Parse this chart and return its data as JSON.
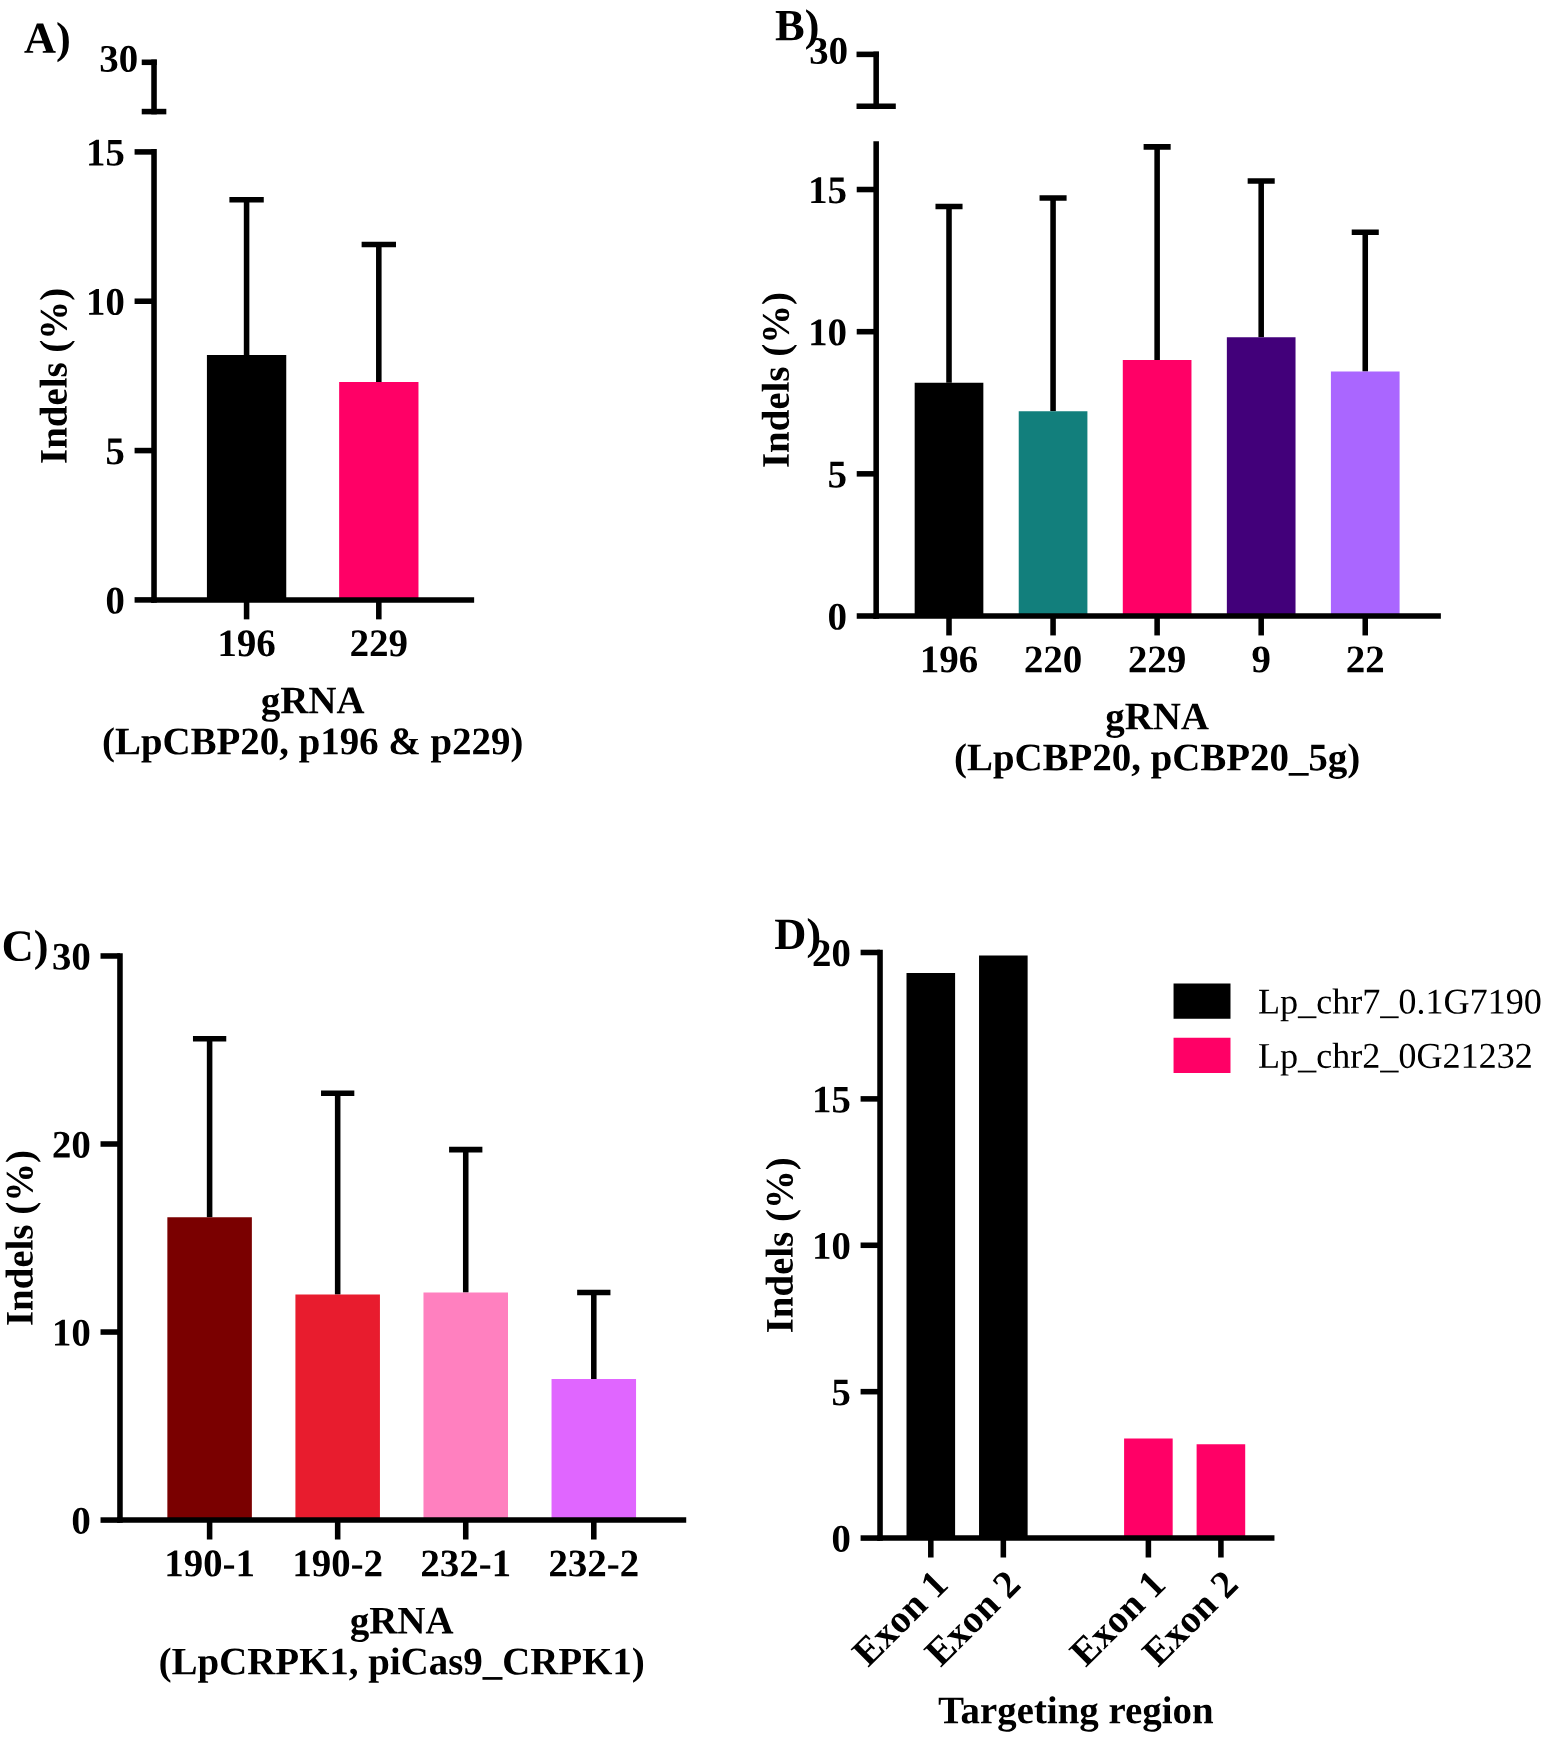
{
  "chart_data": [
    {
      "type": "bar",
      "title": "A)",
      "ylabel": "Indels (%)",
      "xlabel": "gRNA\n(LpCBP20, p196 & p229)",
      "categories": [
        "196",
        "229"
      ],
      "values": [
        8.2,
        7.3
      ],
      "colors": [
        "#000000",
        "#ff0066"
      ],
      "errors": [
        [
          8.2,
          13.4
        ],
        [
          7.3,
          11.9
        ]
      ],
      "ylim": [
        0,
        15
      ],
      "yticks": [
        0,
        5,
        10,
        15
      ],
      "annotations": [
        "30"
      ]
    },
    {
      "type": "bar",
      "title": "B)",
      "ylabel": "Indels (%)",
      "xlabel": "gRNA\n(LpCBP20, pCBP20_5g)",
      "categories": [
        "196",
        "220",
        "229",
        "9",
        "22"
      ],
      "values": [
        8.2,
        7.2,
        9.0,
        9.8,
        8.6
      ],
      "colors": [
        "#000000",
        "#127f7c",
        "#ff0066",
        "#42007a",
        "#aa66ff"
      ],
      "errors": [
        [
          8.2,
          14.4
        ],
        [
          7.2,
          14.7
        ],
        [
          9.0,
          16.5
        ],
        [
          9.8,
          15.3
        ],
        [
          8.6,
          13.5
        ]
      ],
      "ylim": [
        0,
        16.6
      ],
      "yticks": [
        0,
        5,
        10,
        15
      ],
      "annotations": [
        "30"
      ]
    },
    {
      "type": "bar",
      "title": "C)",
      "ylabel": "Indels (%)",
      "xlabel": "gRNA\n(LpCRPK1, piCas9_CRPK1)",
      "categories": [
        "190-1",
        "190-2",
        "232-1",
        "232-2"
      ],
      "values": [
        16.1,
        12.0,
        12.1,
        7.5
      ],
      "colors": [
        "#7a0000",
        "#e81c2e",
        "#ff80bf",
        "#e066ff"
      ],
      "errors": [
        [
          16.1,
          25.6
        ],
        [
          12.0,
          22.7
        ],
        [
          12.1,
          19.7
        ],
        [
          7.5,
          12.1
        ]
      ],
      "ylim": [
        0,
        30
      ],
      "yticks": [
        0,
        10,
        20,
        30
      ]
    },
    {
      "type": "bar",
      "title": "D)",
      "ylabel": "Indels (%)",
      "xlabel": "Targeting region",
      "categories": [
        "Exon 1",
        "Exon 2",
        null,
        "Exon 1",
        "Exon 2"
      ],
      "legend": "top right",
      "ylim": [
        0,
        20
      ],
      "yticks": [
        0,
        5,
        10,
        15,
        20
      ],
      "series": [
        {
          "name": "Lp_chr7_0.1G7190",
          "color": "#000000",
          "values": [
            19.3,
            19.9,
            null,
            null,
            null
          ]
        },
        {
          "name": "Lp_chr2_0G21232",
          "color": "#ff0066",
          "values": [
            null,
            null,
            null,
            3.4,
            3.2
          ]
        }
      ]
    }
  ]
}
